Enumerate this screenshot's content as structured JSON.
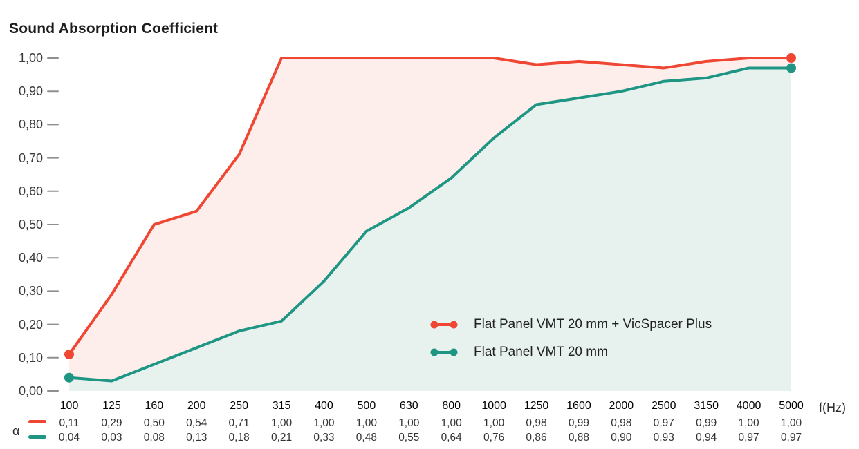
{
  "title": "Sound Absorption Coefficient",
  "chart_data": {
    "type": "line",
    "title": "Sound Absorption Coefficient",
    "xlabel": "f(Hz)",
    "ylabel": "Sound Absorption Coefficient",
    "row_label": "α",
    "ylim": [
      0,
      1
    ],
    "grid": false,
    "legend_position": "inside-right",
    "categories": [
      "100",
      "125",
      "160",
      "200",
      "250",
      "315",
      "400",
      "500",
      "630",
      "800",
      "1000",
      "1250",
      "1600",
      "2000",
      "2500",
      "3150",
      "4000",
      "5000"
    ],
    "yticks": [
      {
        "value": 1.0,
        "label": "1,00"
      },
      {
        "value": 0.9,
        "label": "0,90"
      },
      {
        "value": 0.8,
        "label": "0,80"
      },
      {
        "value": 0.7,
        "label": "0,70"
      },
      {
        "value": 0.6,
        "label": "0,60"
      },
      {
        "value": 0.5,
        "label": "0,50"
      },
      {
        "value": 0.4,
        "label": "0,40"
      },
      {
        "value": 0.3,
        "label": "0,30"
      },
      {
        "value": 0.2,
        "label": "0,20"
      },
      {
        "value": 0.1,
        "label": "0,10"
      },
      {
        "value": 0.0,
        "label": "0,00"
      }
    ],
    "series": [
      {
        "name": "Flat Panel VMT 20 mm + VicSpacer Plus",
        "color": "#EF4733",
        "fill": "#FDEEEB",
        "values": [
          0.11,
          0.29,
          0.5,
          0.54,
          0.71,
          1.0,
          1.0,
          1.0,
          1.0,
          1.0,
          1.0,
          0.98,
          0.99,
          0.98,
          0.97,
          0.99,
          1.0,
          1.0
        ],
        "values_display": [
          "0,11",
          "0,29",
          "0,50",
          "0,54",
          "0,71",
          "1,00",
          "1,00",
          "1,00",
          "1,00",
          "1,00",
          "1,00",
          "0,98",
          "0,99",
          "0,98",
          "0,97",
          "0,99",
          "1,00",
          "1,00"
        ]
      },
      {
        "name": "Flat Panel VMT 20 mm",
        "color": "#1F9583",
        "fill": "#E7F2EF",
        "values": [
          0.04,
          0.03,
          0.08,
          0.13,
          0.18,
          0.21,
          0.33,
          0.48,
          0.55,
          0.64,
          0.76,
          0.86,
          0.88,
          0.9,
          0.93,
          0.94,
          0.97,
          0.97
        ],
        "values_display": [
          "0,04",
          "0,03",
          "0,08",
          "0,13",
          "0,18",
          "0,21",
          "0,33",
          "0,48",
          "0,55",
          "0,64",
          "0,76",
          "0,86",
          "0,88",
          "0,90",
          "0,93",
          "0,94",
          "0,97",
          "0,97"
        ]
      }
    ],
    "tick_color": "#8f8f8f"
  }
}
